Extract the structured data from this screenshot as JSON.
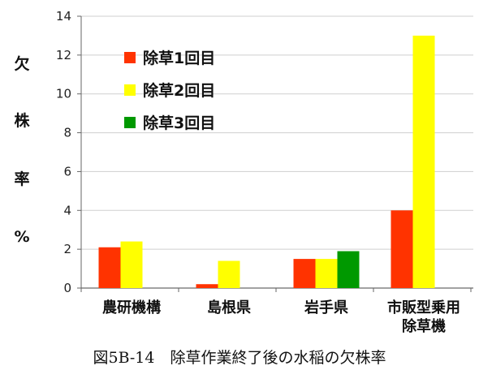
{
  "chart_data": {
    "type": "bar",
    "categories": [
      [
        "農研機構"
      ],
      [
        "島根県"
      ],
      [
        "岩手県"
      ],
      [
        "市販型乗用",
        "除草機"
      ]
    ],
    "series": [
      {
        "name": "除草1回目",
        "color": "#ff3300",
        "values": [
          2.1,
          0.2,
          1.5,
          4.0
        ]
      },
      {
        "name": "除草2回目",
        "color": "#ffff00",
        "values": [
          2.4,
          1.4,
          1.5,
          13.0
        ]
      },
      {
        "name": "除草3回目",
        "color": "#009900",
        "values": [
          null,
          null,
          1.9,
          null
        ]
      }
    ],
    "ylabel": [
      "欠",
      "株",
      "率",
      "%"
    ],
    "ylim": [
      0,
      14
    ],
    "yticks": [
      "0",
      "2",
      "4",
      "6",
      "8",
      "10",
      "12",
      "14"
    ],
    "grid": true,
    "legend_position": "top-left"
  },
  "caption": "図5B-14　除草作業終了後の水稲の欠株率"
}
